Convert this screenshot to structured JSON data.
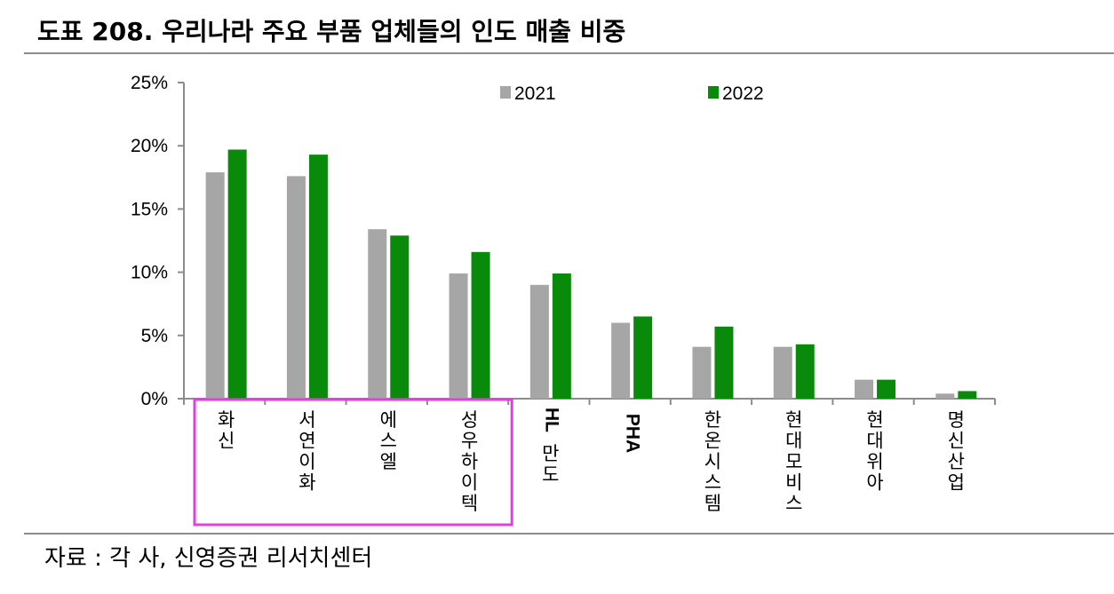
{
  "title": "도표 208. 우리나라 주요 부품 업체들의 인도 매출 비중",
  "source": "자료 : 각 사, 신영증권 리서치센터",
  "colors": {
    "2021": "#a6a6a6",
    "2022": "#0a8a0a",
    "highlight": "#e040e0",
    "axis": "#8c8c8c"
  },
  "chart_data": {
    "type": "bar",
    "categories": [
      "화신",
      "서연이화",
      "에스엘",
      "성우하이텍",
      "HL만도",
      "PHA",
      "한온시스템",
      "현대모비스",
      "현대위아",
      "명신산업"
    ],
    "series": [
      {
        "name": "2021",
        "values": [
          17.9,
          17.6,
          13.4,
          9.9,
          9.0,
          6.0,
          4.1,
          4.1,
          1.5,
          0.4
        ]
      },
      {
        "name": "2022",
        "values": [
          19.7,
          19.3,
          12.9,
          11.6,
          9.9,
          6.5,
          5.7,
          4.3,
          1.5,
          0.6
        ]
      }
    ],
    "yticks": [
      "0%",
      "5%",
      "10%",
      "15%",
      "20%",
      "25%"
    ],
    "ylim": [
      0,
      25
    ],
    "legend": "top-center",
    "highlighted_categories": [
      "화신",
      "서연이화",
      "에스엘",
      "성우하이텍"
    ]
  }
}
